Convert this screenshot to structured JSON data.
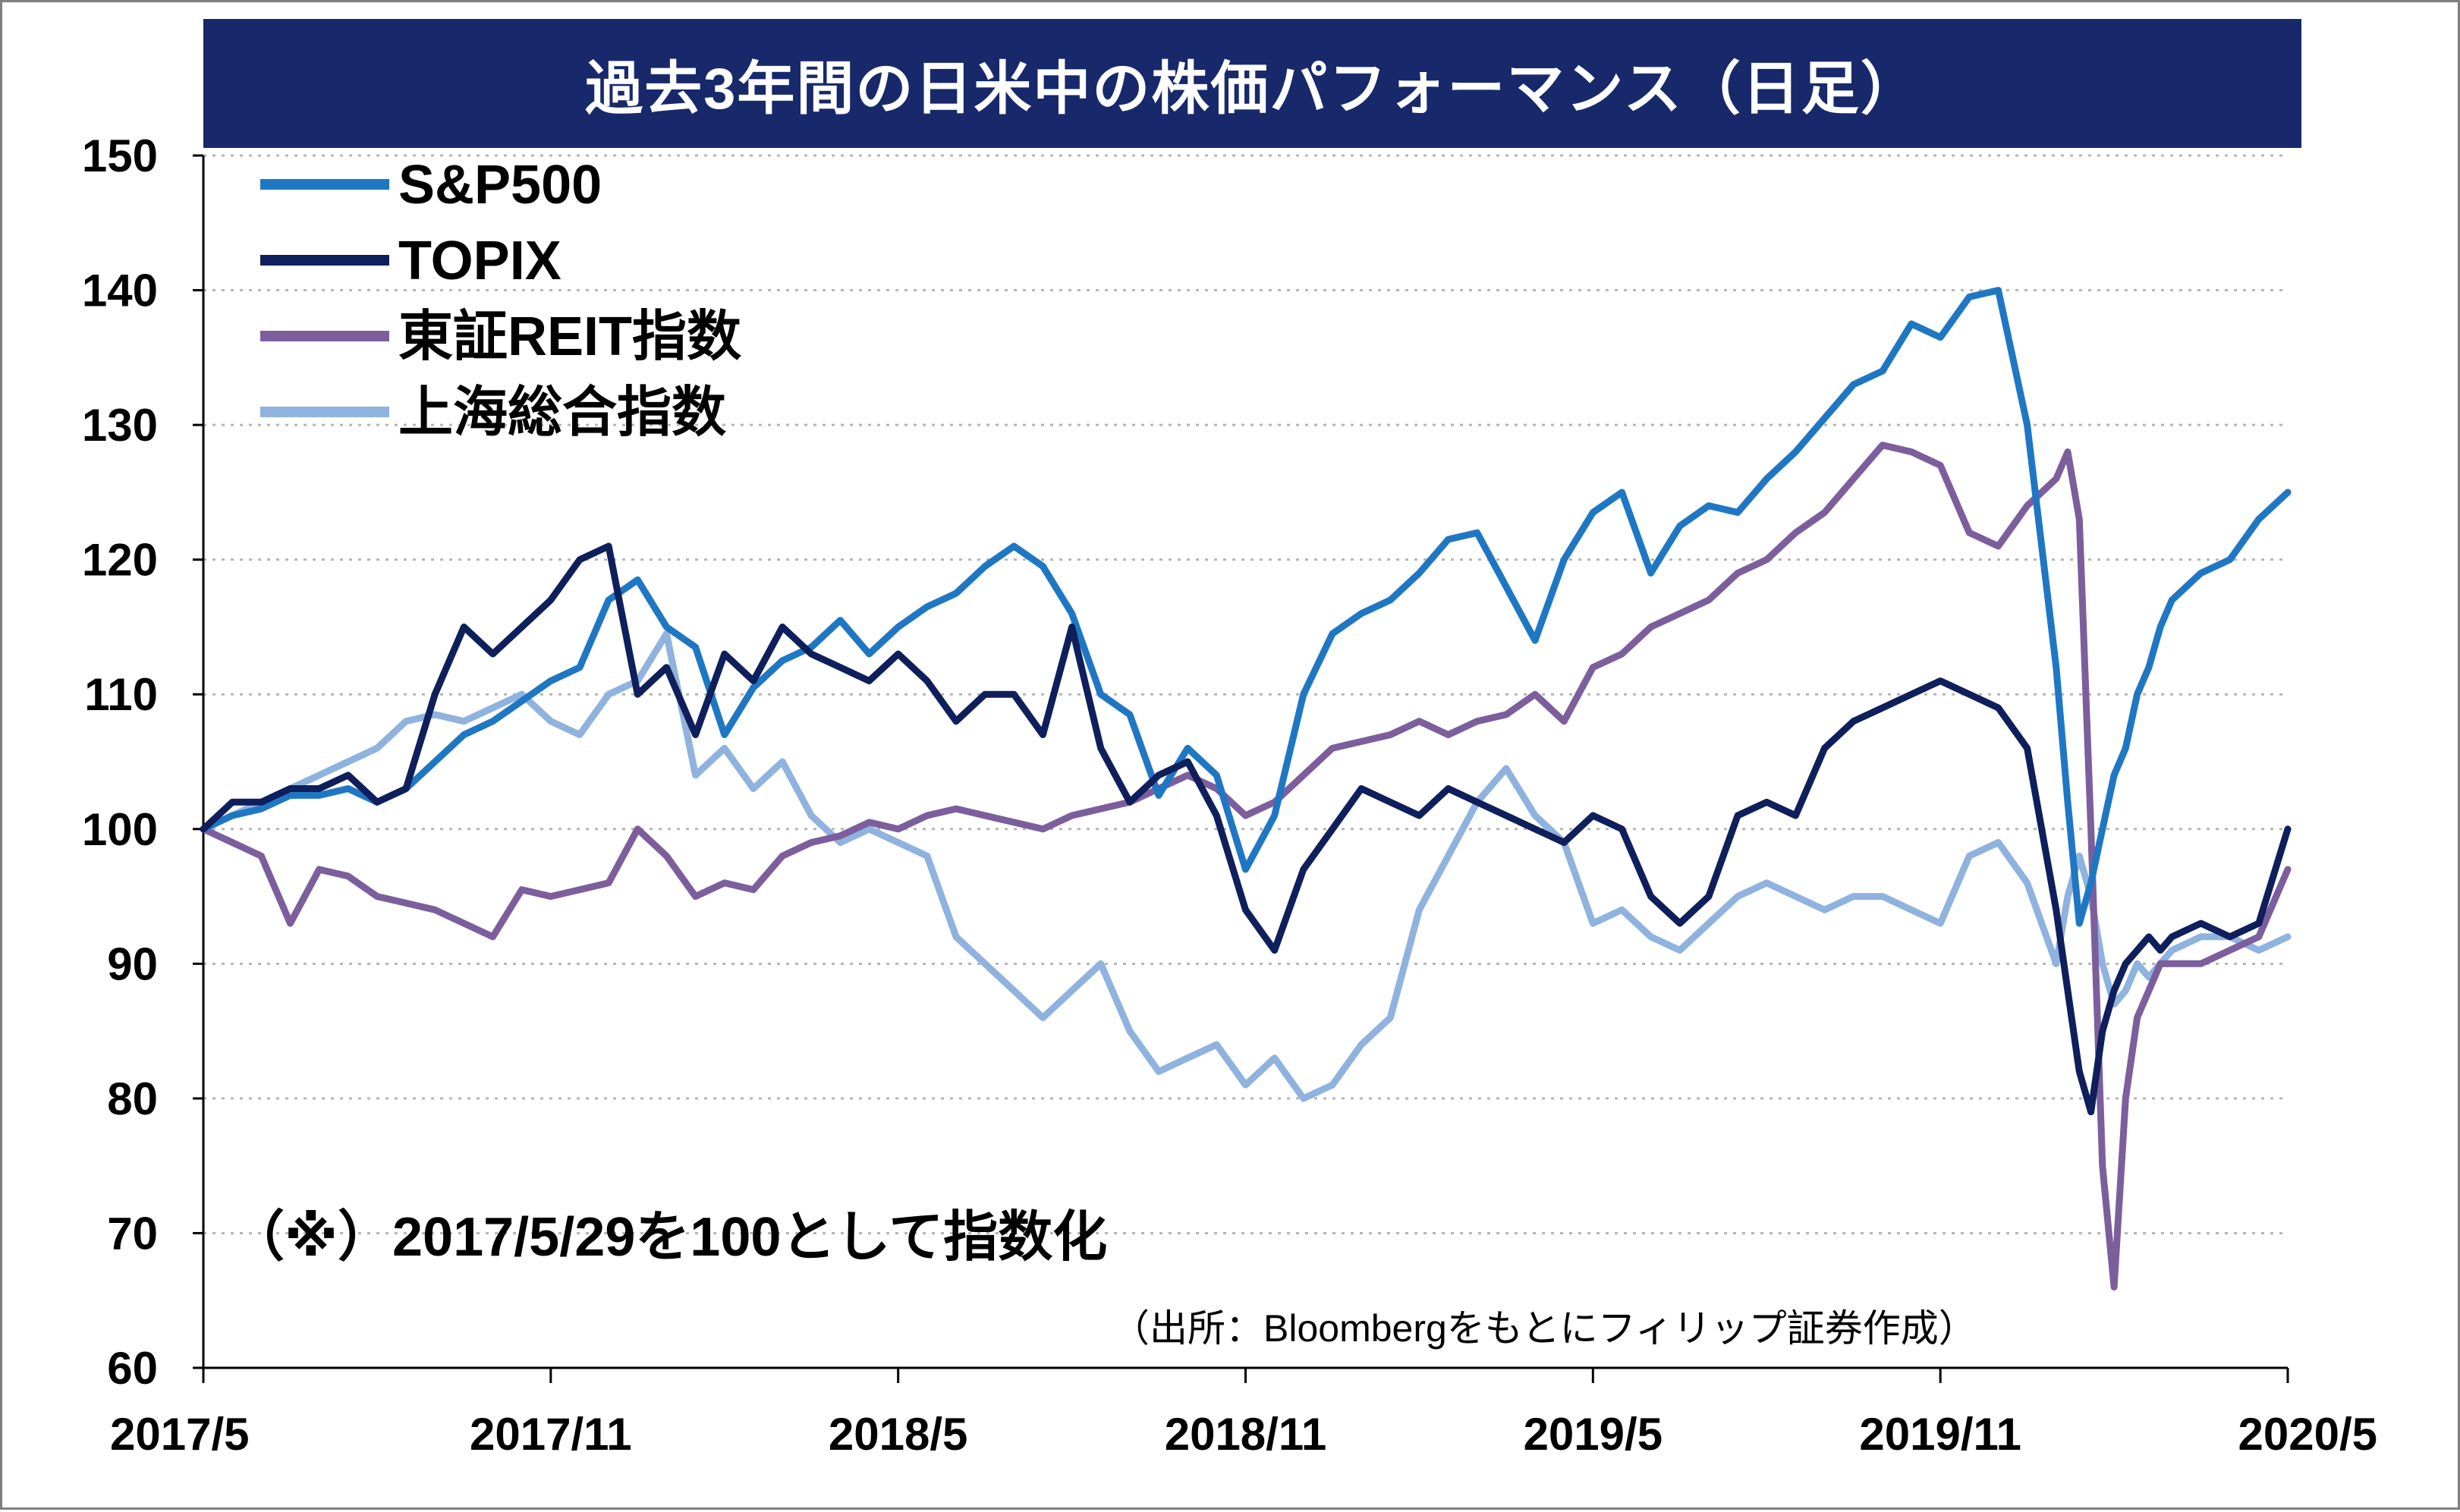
{
  "chart_data": {
    "type": "line",
    "title": "過去3年間の日米中の株価パフォーマンス（日足）",
    "note": "（※）2017/5/29を100として指数化",
    "source": "（出所：Bloombergをもとにフィリップ証券作成）",
    "x_ticks": [
      "2017/5",
      "2017/11",
      "2018/5",
      "2018/11",
      "2019/5",
      "2019/11",
      "2020/5"
    ],
    "y_ticks": [
      60,
      70,
      80,
      90,
      100,
      110,
      120,
      130,
      140,
      150
    ],
    "ylim": [
      60,
      150
    ],
    "xlim": [
      0,
      36
    ],
    "grid": "horizontal dotted",
    "legend_position": "top-left",
    "series": [
      {
        "name": "S&P500",
        "color": "#1f77c4",
        "x": [
          0,
          0.5,
          1,
          1.5,
          2,
          2.5,
          3,
          3.5,
          4,
          4.5,
          5,
          5.5,
          6,
          6.5,
          7,
          7.5,
          8,
          8.5,
          9,
          9.5,
          10,
          10.5,
          11,
          11.5,
          12,
          12.5,
          13,
          13.5,
          14,
          14.5,
          15,
          15.5,
          16,
          16.5,
          17,
          17.5,
          18,
          18.5,
          19,
          19.5,
          20,
          20.5,
          21,
          21.5,
          22,
          22.5,
          23,
          23.5,
          24,
          24.5,
          25,
          25.5,
          26,
          26.5,
          27,
          27.5,
          28,
          28.5,
          29,
          29.5,
          30,
          30.5,
          31,
          31.5,
          32,
          32.2,
          32.4,
          32.6,
          32.8,
          33,
          33.2,
          33.4,
          33.6,
          33.8,
          34,
          34.5,
          35,
          35.5,
          36
        ],
        "values": [
          100,
          101,
          101.5,
          102.5,
          102.5,
          103,
          102,
          103,
          105,
          107,
          108,
          109.5,
          111,
          112,
          117,
          118.5,
          115,
          113.5,
          107,
          110.5,
          112.5,
          113.5,
          115.5,
          113,
          115,
          116.5,
          117.5,
          119.5,
          121,
          119.5,
          116,
          110,
          108.5,
          102.5,
          106,
          104,
          97,
          101,
          110,
          114.5,
          116,
          117,
          119,
          121.5,
          122,
          118,
          114,
          120,
          123.5,
          125,
          119,
          122.5,
          124,
          123.5,
          126,
          128,
          130.5,
          133,
          134,
          137.5,
          136.5,
          139.5,
          140,
          130,
          112,
          102,
          93,
          96,
          100,
          104,
          106,
          110,
          112,
          115,
          117,
          119,
          120,
          123,
          125
        ]
      },
      {
        "name": "TOPIX",
        "color": "#0e1f5b",
        "x": [
          0,
          0.5,
          1,
          1.5,
          2,
          2.5,
          3,
          3.5,
          4,
          4.5,
          5,
          5.5,
          6,
          6.5,
          7,
          7.5,
          8,
          8.5,
          9,
          9.5,
          10,
          10.5,
          11,
          11.5,
          12,
          12.5,
          13,
          13.5,
          14,
          14.5,
          15,
          15.5,
          16,
          16.5,
          17,
          17.5,
          18,
          18.5,
          19,
          19.5,
          20,
          20.5,
          21,
          21.5,
          22,
          22.5,
          23,
          23.5,
          24,
          24.5,
          25,
          25.5,
          26,
          26.5,
          27,
          27.5,
          28,
          28.5,
          29,
          29.5,
          30,
          30.5,
          31,
          31.5,
          32,
          32.2,
          32.4,
          32.6,
          32.8,
          33,
          33.2,
          33.4,
          33.6,
          33.8,
          34,
          34.5,
          35,
          35.5,
          36
        ],
        "values": [
          100,
          102,
          102,
          103,
          103,
          104,
          102,
          103,
          110,
          115,
          113,
          115,
          117,
          120,
          121,
          110,
          112,
          107,
          113,
          111,
          115,
          113,
          112,
          111,
          113,
          111,
          108,
          110,
          110,
          107,
          115,
          106,
          102,
          104,
          105,
          101,
          94,
          91,
          97,
          100,
          103,
          102,
          101,
          103,
          102,
          101,
          100,
          99,
          101,
          100,
          95,
          93,
          95,
          101,
          102,
          101,
          106,
          108,
          109,
          110,
          111,
          110,
          109,
          106,
          94,
          88,
          82,
          79,
          85,
          88,
          90,
          91,
          92,
          91,
          92,
          93,
          92,
          93,
          100
        ]
      },
      {
        "name": "東証REIT指数",
        "color": "#7c5e9d",
        "x": [
          0,
          0.5,
          1,
          1.5,
          2,
          2.5,
          3,
          3.5,
          4,
          4.5,
          5,
          5.5,
          6,
          6.5,
          7,
          7.5,
          8,
          8.5,
          9,
          9.5,
          10,
          10.5,
          11,
          11.5,
          12,
          12.5,
          13,
          13.5,
          14,
          14.5,
          15,
          15.5,
          16,
          16.5,
          17,
          17.5,
          18,
          18.5,
          19,
          19.5,
          20,
          20.5,
          21,
          21.5,
          22,
          22.5,
          23,
          23.5,
          24,
          24.5,
          25,
          25.5,
          26,
          26.5,
          27,
          27.5,
          28,
          28.5,
          29,
          29.5,
          30,
          30.5,
          31,
          31.5,
          32,
          32.2,
          32.4,
          32.6,
          32.8,
          33,
          33.2,
          33.4,
          33.6,
          33.8,
          34,
          34.5,
          35,
          35.5,
          36
        ],
        "values": [
          100,
          99,
          98,
          93,
          97,
          96.5,
          95,
          94.5,
          94,
          93,
          92,
          95.5,
          95,
          95.5,
          96,
          100,
          98,
          95,
          96,
          95.5,
          98,
          99,
          99.5,
          100.5,
          100,
          101,
          101.5,
          101,
          100.5,
          100,
          101,
          101.5,
          102,
          103,
          104,
          103,
          101,
          102,
          104,
          106,
          106.5,
          107,
          108,
          107,
          108,
          108.5,
          110,
          108,
          112,
          113,
          115,
          116,
          117,
          119,
          120,
          122,
          123.5,
          126,
          128.5,
          128,
          127,
          122,
          121,
          124,
          126,
          128,
          123,
          100,
          75,
          66,
          80,
          86,
          88,
          90,
          90,
          90,
          91,
          92,
          97
        ]
      },
      {
        "name": "上海総合指数",
        "color": "#8fb2de",
        "x": [
          0,
          0.5,
          1,
          1.5,
          2,
          2.5,
          3,
          3.5,
          4,
          4.5,
          5,
          5.5,
          6,
          6.5,
          7,
          7.5,
          8,
          8.5,
          9,
          9.5,
          10,
          10.5,
          11,
          11.5,
          12,
          12.5,
          13,
          13.5,
          14,
          14.5,
          15,
          15.5,
          16,
          16.5,
          17,
          17.5,
          18,
          18.5,
          19,
          19.5,
          20,
          20.5,
          21,
          21.5,
          22,
          22.5,
          23,
          23.5,
          24,
          24.5,
          25,
          25.5,
          26,
          26.5,
          27,
          27.5,
          28,
          28.5,
          29,
          29.5,
          30,
          30.5,
          31,
          31.5,
          32,
          32.2,
          32.4,
          32.6,
          32.8,
          33,
          33.2,
          33.4,
          33.6,
          33.8,
          34,
          34.5,
          35,
          35.5,
          36
        ],
        "values": [
          100,
          101,
          102,
          103,
          104,
          105,
          106,
          108,
          108.5,
          108,
          109,
          110,
          108,
          107,
          110,
          111,
          114.5,
          104,
          106,
          103,
          105,
          101,
          99,
          100,
          99,
          98,
          92,
          90,
          88,
          86,
          88,
          90,
          85,
          82,
          83,
          84,
          81,
          83,
          80,
          81,
          84,
          86,
          94,
          98,
          102,
          104.5,
          101,
          99,
          93,
          94,
          92,
          91,
          93,
          95,
          96,
          95,
          94,
          95,
          95,
          94,
          93,
          98,
          99,
          96,
          90,
          95,
          98,
          95,
          90,
          87,
          88,
          90,
          89,
          90,
          91,
          92,
          92,
          91,
          92
        ]
      }
    ]
  }
}
